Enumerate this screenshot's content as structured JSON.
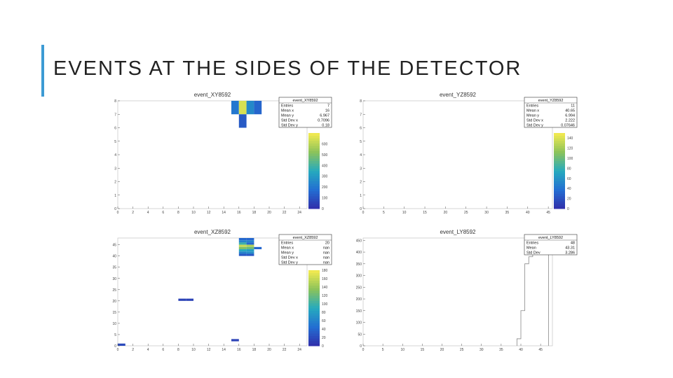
{
  "slide": {
    "title": "EVENTS AT THE SIDES OF THE DETECTOR"
  },
  "palette": {
    "accent": "#3d9bd4"
  },
  "chart_data": [
    {
      "type": "heatmap",
      "title": "event_XY8592",
      "xlim": [
        0,
        25
      ],
      "ylim": [
        0,
        8
      ],
      "x_ticks": [
        "0",
        "2",
        "4",
        "6",
        "8",
        "10",
        "12",
        "14",
        "16",
        "18",
        "20",
        "22",
        "24"
      ],
      "y_ticks": [
        "0",
        "1",
        "2",
        "3",
        "4",
        "5",
        "6",
        "7",
        "8"
      ],
      "cells": [
        {
          "x": 15,
          "y": 7,
          "v": 200
        },
        {
          "x": 16,
          "y": 7,
          "v": 650
        },
        {
          "x": 17,
          "y": 7,
          "v": 250
        },
        {
          "x": 18,
          "y": 7,
          "v": 150
        },
        {
          "x": 16,
          "y": 6,
          "v": 120
        }
      ],
      "zmax": 700,
      "z_ticks": [
        "0",
        "100",
        "200",
        "300",
        "400",
        "500",
        "600"
      ],
      "stats": {
        "name": "event_XY8592",
        "rows": [
          [
            "Entries",
            "7"
          ],
          [
            "Mean x",
            "16"
          ],
          [
            "Mean y",
            "6.967"
          ],
          [
            "Std Dev x",
            "0.7096"
          ],
          [
            "Std Dev y",
            "0.18"
          ]
        ]
      }
    },
    {
      "type": "heatmap",
      "title": "event_YZ8592",
      "xlim": [
        0,
        46
      ],
      "ylim": [
        0,
        8
      ],
      "x_ticks": [
        "0",
        "5",
        "10",
        "15",
        "20",
        "25",
        "30",
        "35",
        "40",
        "45"
      ],
      "y_ticks": [
        "0",
        "1",
        "2",
        "3",
        "4",
        "5",
        "6",
        "7",
        "8"
      ],
      "cells": [
        {
          "x": 41,
          "y": 7,
          "v": 60
        },
        {
          "x": 42,
          "y": 7,
          "v": 150
        }
      ],
      "zmax": 150,
      "z_ticks": [
        "0",
        "20",
        "40",
        "60",
        "80",
        "100",
        "120",
        "140"
      ],
      "stats": {
        "name": "event_YZ8592",
        "rows": [
          [
            "Entries",
            "11"
          ],
          [
            "Mean x",
            "40.65"
          ],
          [
            "Mean y",
            "6.994"
          ],
          [
            "Std Dev x",
            "2.222"
          ],
          [
            "Std Dev y",
            "0.07646"
          ]
        ]
      }
    },
    {
      "type": "heatmap",
      "title": "event_XZ8592",
      "xlim": [
        0,
        25
      ],
      "ylim": [
        0,
        48
      ],
      "x_ticks": [
        "0",
        "2",
        "4",
        "6",
        "8",
        "10",
        "12",
        "14",
        "16",
        "18",
        "20",
        "22",
        "24"
      ],
      "y_ticks": [
        "0",
        "5",
        "10",
        "15",
        "20",
        "25",
        "30",
        "35",
        "40",
        "45"
      ],
      "cells": [
        {
          "x": 16,
          "y": 47,
          "v": 40
        },
        {
          "x": 17,
          "y": 47,
          "v": 40
        },
        {
          "x": 16,
          "y": 46,
          "v": 60
        },
        {
          "x": 17,
          "y": 46,
          "v": 60
        },
        {
          "x": 16,
          "y": 45,
          "v": 100
        },
        {
          "x": 17,
          "y": 45,
          "v": 40
        },
        {
          "x": 16,
          "y": 44,
          "v": 160
        },
        {
          "x": 17,
          "y": 44,
          "v": 150
        },
        {
          "x": 16,
          "y": 43,
          "v": 130
        },
        {
          "x": 17,
          "y": 43,
          "v": 120
        },
        {
          "x": 18,
          "y": 43,
          "v": 40
        },
        {
          "x": 16,
          "y": 42,
          "v": 90
        },
        {
          "x": 17,
          "y": 42,
          "v": 80
        },
        {
          "x": 16,
          "y": 41,
          "v": 60
        },
        {
          "x": 17,
          "y": 41,
          "v": 70
        },
        {
          "x": 16,
          "y": 40,
          "v": 30
        },
        {
          "x": 17,
          "y": 40,
          "v": 30
        },
        {
          "x": 8,
          "y": 20,
          "v": 15
        },
        {
          "x": 9,
          "y": 20,
          "v": 15
        },
        {
          "x": 15,
          "y": 2,
          "v": 15
        },
        {
          "x": 0,
          "y": 0,
          "v": 20
        }
      ],
      "zmax": 180,
      "z_ticks": [
        "0",
        "20",
        "40",
        "60",
        "80",
        "100",
        "120",
        "140",
        "160",
        "180"
      ],
      "stats": {
        "name": "event_XZ8592",
        "rows": [
          [
            "Entries",
            "20"
          ],
          [
            "Mean x",
            "nan"
          ],
          [
            "Mean y",
            "nan"
          ],
          [
            "Std Dev x",
            "nan"
          ],
          [
            "Std Dev y",
            "nan"
          ]
        ]
      }
    },
    {
      "type": "bar",
      "title": "event_LY8592",
      "xlim": [
        0,
        48
      ],
      "ylim": [
        0,
        460
      ],
      "x_ticks": [
        "0",
        "5",
        "10",
        "15",
        "20",
        "25",
        "30",
        "35",
        "40",
        "45"
      ],
      "y_ticks": [
        "0",
        "50",
        "100",
        "150",
        "200",
        "250",
        "300",
        "350",
        "400",
        "450"
      ],
      "bins": [
        [
          39,
          40,
          30
        ],
        [
          40,
          41,
          150
        ],
        [
          41,
          42,
          350
        ],
        [
          42,
          43,
          380
        ],
        [
          43,
          44,
          410
        ],
        [
          44,
          45,
          460
        ],
        [
          45,
          46,
          460
        ],
        [
          46,
          47,
          410
        ]
      ],
      "stats": {
        "name": "event_LY8592",
        "rows": [
          [
            "Entries",
            "48"
          ],
          [
            "Mean",
            "43.31"
          ],
          [
            "Std Dev",
            "3.286"
          ]
        ]
      }
    }
  ]
}
